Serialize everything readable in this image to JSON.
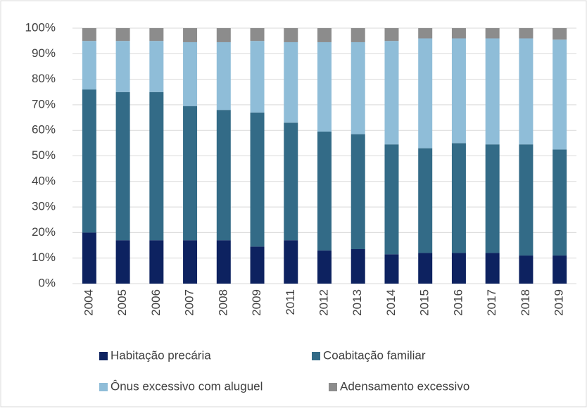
{
  "chart_data": {
    "type": "stacked_bar",
    "categories": [
      "2004",
      "2005",
      "2006",
      "2007",
      "2008",
      "2009",
      "2011",
      "2012",
      "2013",
      "2014",
      "2015",
      "2016",
      "2017",
      "2018",
      "2019"
    ],
    "series": [
      {
        "name": "Habitação precária",
        "color": "#0d2260",
        "values": [
          20,
          17,
          17,
          17,
          17,
          14.5,
          17,
          13,
          13.5,
          11.5,
          12,
          12,
          12,
          11,
          11
        ]
      },
      {
        "name": "Coabitação familiar",
        "color": "#336b87",
        "values": [
          56,
          58,
          58,
          52.5,
          51,
          52.5,
          46,
          46.5,
          45,
          43,
          41,
          43,
          42.5,
          43.5,
          41.5
        ]
      },
      {
        "name": "Ônus excessivo com aluguel",
        "color": "#8fbdd8",
        "values": [
          19,
          20,
          20,
          25,
          26.5,
          28,
          31.5,
          35,
          36,
          40.5,
          43,
          41,
          41.5,
          41.5,
          43
        ]
      },
      {
        "name": "Adensamento excessivo",
        "color": "#8c8c8c",
        "values": [
          5,
          5,
          5,
          5.5,
          5.5,
          5,
          5.5,
          5.5,
          5.5,
          5,
          4,
          4,
          4,
          4,
          4.5
        ]
      }
    ],
    "ylim": [
      0,
      100
    ],
    "yticks": [
      {
        "value": 0,
        "label": "0%"
      },
      {
        "value": 10,
        "label": "10%"
      },
      {
        "value": 20,
        "label": "20%"
      },
      {
        "value": 30,
        "label": "30%"
      },
      {
        "value": 40,
        "label": "40%"
      },
      {
        "value": 50,
        "label": "50%"
      },
      {
        "value": 60,
        "label": "60%"
      },
      {
        "value": 70,
        "label": "70%"
      },
      {
        "value": 80,
        "label": "80%"
      },
      {
        "value": 90,
        "label": "90%"
      },
      {
        "value": 100,
        "label": "100%"
      }
    ],
    "grid": true,
    "legend": "bottom"
  }
}
